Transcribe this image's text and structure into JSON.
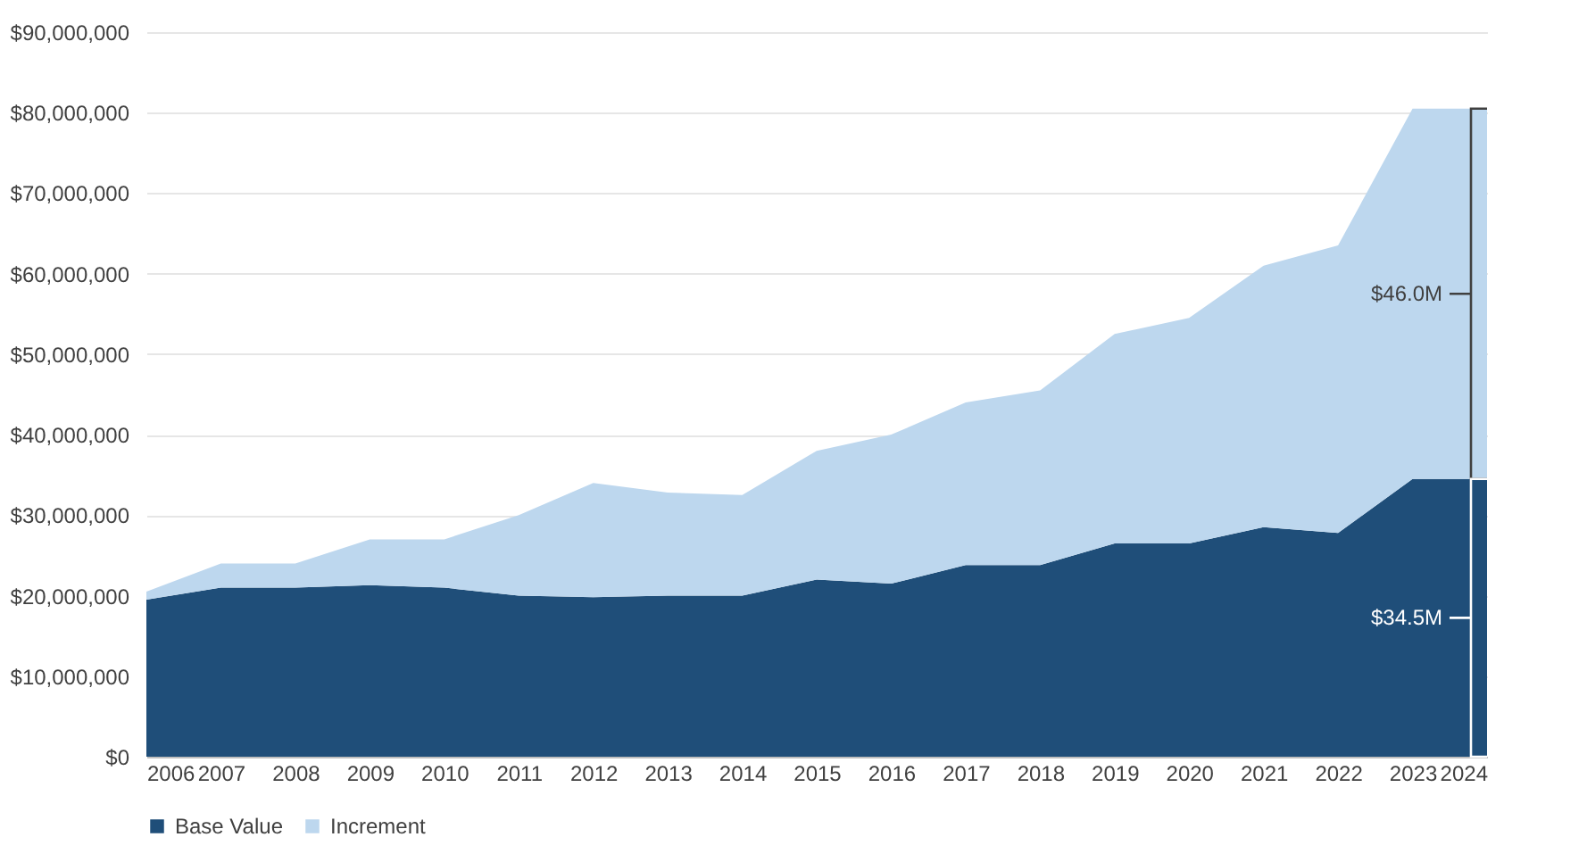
{
  "chart_data": {
    "type": "area",
    "stacked": true,
    "x": [
      2006,
      2007,
      2008,
      2009,
      2010,
      2011,
      2012,
      2013,
      2014,
      2015,
      2016,
      2017,
      2018,
      2019,
      2020,
      2021,
      2022,
      2023,
      2024
    ],
    "xlim": [
      2006,
      2024
    ],
    "xticks": [
      2006,
      2007,
      2008,
      2009,
      2010,
      2011,
      2012,
      2013,
      2014,
      2015,
      2016,
      2017,
      2018,
      2019,
      2020,
      2021,
      2022,
      2023,
      2024
    ],
    "ylim": [
      0,
      90000000
    ],
    "yticks": [
      {
        "value": 0,
        "label": "$0"
      },
      {
        "value": 10000000,
        "label": "$10,000,000"
      },
      {
        "value": 20000000,
        "label": "$20,000,000"
      },
      {
        "value": 30000000,
        "label": "$30,000,000"
      },
      {
        "value": 40000000,
        "label": "$40,000,000"
      },
      {
        "value": 50000000,
        "label": "$50,000,000"
      },
      {
        "value": 60000000,
        "label": "$60,000,000"
      },
      {
        "value": 70000000,
        "label": "$70,000,000"
      },
      {
        "value": 80000000,
        "label": "$80,000,000"
      },
      {
        "value": 90000000,
        "label": "$90,000,000"
      }
    ],
    "series": [
      {
        "name": "Base Value",
        "color": "#1f4e79",
        "values": [
          19500000,
          21000000,
          21000000,
          21300000,
          21000000,
          20000000,
          19800000,
          20000000,
          20000000,
          22000000,
          21500000,
          23800000,
          23800000,
          26500000,
          26500000,
          28500000,
          27800000,
          34500000,
          34500000
        ]
      },
      {
        "name": "Increment",
        "color": "#bdd7ee",
        "values": [
          1000000,
          3000000,
          3000000,
          5700000,
          6000000,
          10000000,
          14200000,
          12800000,
          12500000,
          16000000,
          18500000,
          20200000,
          21700000,
          26000000,
          28000000,
          32500000,
          35700000,
          46000000,
          46000000
        ]
      }
    ],
    "annotations": [
      {
        "text": "$46.0M",
        "x": 2024,
        "y": 57500000
      },
      {
        "text": "$34.5M",
        "x": 2024,
        "y": 17250000
      }
    ],
    "grid": "y",
    "legend": "bottom"
  }
}
